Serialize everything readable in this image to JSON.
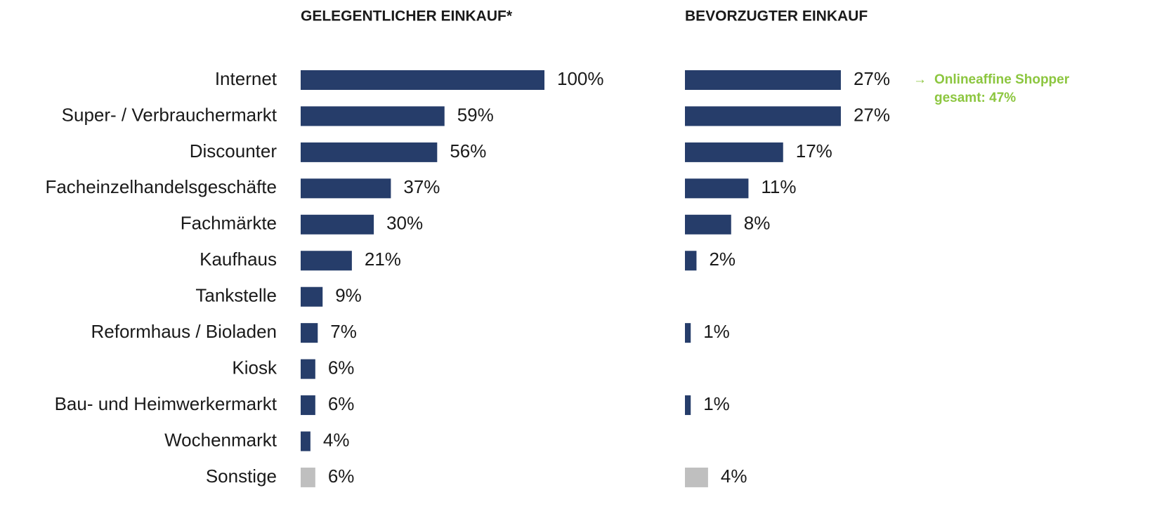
{
  "chart_data": [
    {
      "type": "bar",
      "orientation": "horizontal",
      "title": "GELEGENTLICHER EINKAUF*",
      "categories": [
        "Internet",
        "Super- / Verbrauchermarkt",
        "Discounter",
        "Facheinzelhandelsgeschäfte",
        "Fachmärkte",
        "Kaufhaus",
        "Tankstelle",
        "Reformhaus / Bioladen",
        "Kiosk",
        "Bau- und Heimwerkermarkt",
        "Wochenmarkt",
        "Sonstige"
      ],
      "values": [
        100,
        59,
        56,
        37,
        30,
        21,
        9,
        7,
        6,
        6,
        4,
        6
      ],
      "value_labels": [
        "100%",
        "59%",
        "56%",
        "37%",
        "30%",
        "21%",
        "9%",
        "7%",
        "6%",
        "6%",
        "4%",
        "6%"
      ],
      "colors": [
        "#263d6a",
        "#263d6a",
        "#263d6a",
        "#263d6a",
        "#263d6a",
        "#263d6a",
        "#263d6a",
        "#263d6a",
        "#263d6a",
        "#263d6a",
        "#263d6a",
        "#bfbfbf"
      ],
      "label_colors": [
        "#1a1a1a",
        "#1a1a1a",
        "#1a1a1a",
        "#1a1a1a",
        "#1a1a1a",
        "#1a1a1a",
        "#1a1a1a",
        "#1a1a1a",
        "#1a1a1a",
        "#1a1a1a",
        "#1a1a1a",
        "#a6a6a6"
      ],
      "xlim": [
        0,
        100
      ]
    },
    {
      "type": "bar",
      "orientation": "horizontal",
      "title": "BEVORZUGTER EINKAUF",
      "values": [
        27,
        27,
        17,
        11,
        8,
        2,
        null,
        1,
        null,
        1,
        null,
        4
      ],
      "value_labels": [
        "27%",
        "27%",
        "17%",
        "11%",
        "8%",
        "2%",
        null,
        "1%",
        null,
        "1%",
        null,
        "4%"
      ],
      "colors": [
        "#263d6a",
        "#263d6a",
        "#263d6a",
        "#263d6a",
        "#263d6a",
        "#263d6a",
        null,
        "#263d6a",
        null,
        "#263d6a",
        null,
        "#bfbfbf"
      ],
      "label_colors": [
        "#1a1a1a",
        "#1a1a1a",
        "#1a1a1a",
        "#1a1a1a",
        "#1a1a1a",
        "#1a1a1a",
        null,
        "#1a1a1a",
        null,
        "#1a1a1a",
        null,
        "#a6a6a6"
      ],
      "xlim": [
        0,
        100
      ],
      "annotation": [
        "Onlineaffine Shopper",
        "gesamt:  47%"
      ]
    }
  ]
}
